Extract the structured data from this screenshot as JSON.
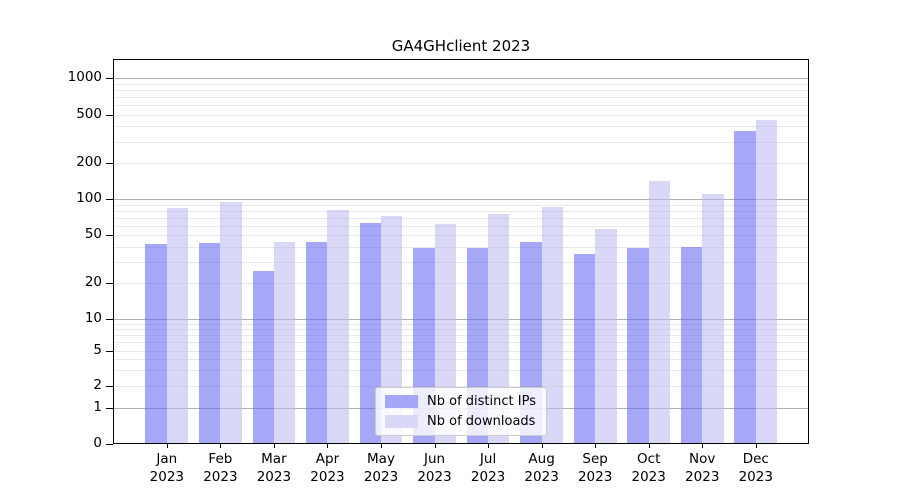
{
  "figure": {
    "title": "GA4GHclient 2023"
  },
  "legend": {
    "items": [
      {
        "label": "Nb of distinct IPs",
        "swatch_color": "#a6a6f7"
      },
      {
        "label": "Nb of downloads",
        "swatch_color": "#d9d9f7"
      }
    ]
  },
  "colors": {
    "bar_distinct_ips": "rgba(94,94,240,0.55)",
    "bar_downloads": "rgba(186,186,240,0.55)",
    "grid_major": "#b2b2b2",
    "grid_minor": "#e9e9e9",
    "spine": "#000000"
  },
  "chart_data": {
    "type": "bar",
    "title": "GA4GHclient 2023",
    "categories": [
      "Jan",
      "Feb",
      "Mar",
      "Apr",
      "May",
      "Jun",
      "Jul",
      "Aug",
      "Sep",
      "Oct",
      "Nov",
      "Dec"
    ],
    "x_tick_second_line": "2023",
    "series": [
      {
        "name": "Nb of distinct IPs",
        "values": [
          42,
          43,
          25,
          44,
          64,
          39,
          39,
          44,
          35,
          39,
          40,
          370
        ]
      },
      {
        "name": "Nb of downloads",
        "values": [
          85,
          95,
          44,
          82,
          73,
          62,
          75,
          86,
          57,
          143,
          110,
          450
        ]
      }
    ],
    "yscale": "symlog",
    "y_ticks": [
      1000,
      500,
      200,
      100,
      50,
      20,
      10,
      5,
      2,
      1,
      0
    ],
    "ylim": [
      0,
      1500
    ],
    "grid": true,
    "legend_position": "lower center"
  }
}
